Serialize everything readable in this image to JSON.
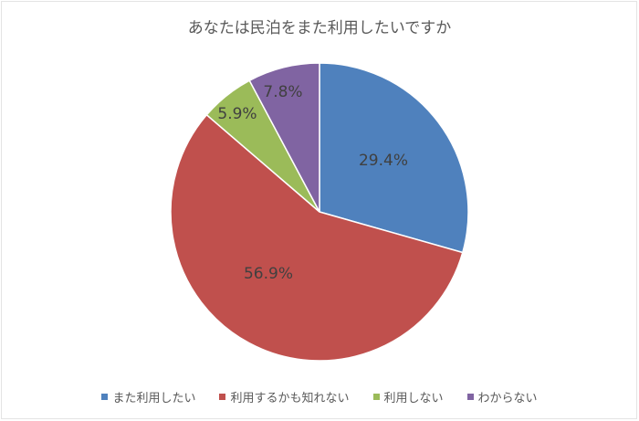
{
  "chart_data": {
    "type": "pie",
    "title": "あなたは民泊をまた利用したいですか",
    "categories": [
      "また利用したい",
      "利用するかも知れない",
      "利用しない",
      "わからない"
    ],
    "values": [
      29.4,
      56.9,
      5.9,
      7.8
    ],
    "labels": [
      "29.4%",
      "56.9%",
      "5.9%",
      "7.8%"
    ],
    "colors": [
      "#4f81bd",
      "#c0504d",
      "#9bbb59",
      "#8064a2"
    ],
    "legend_position": "bottom",
    "start_angle": "12 o'clock, clockwise"
  },
  "legend": [
    {
      "label": "また利用したい",
      "color": "#4f81bd"
    },
    {
      "label": "利用するかも知れない",
      "color": "#c0504d"
    },
    {
      "label": "利用しない",
      "color": "#9bbb59"
    },
    {
      "label": "わからない",
      "color": "#8064a2"
    }
  ]
}
